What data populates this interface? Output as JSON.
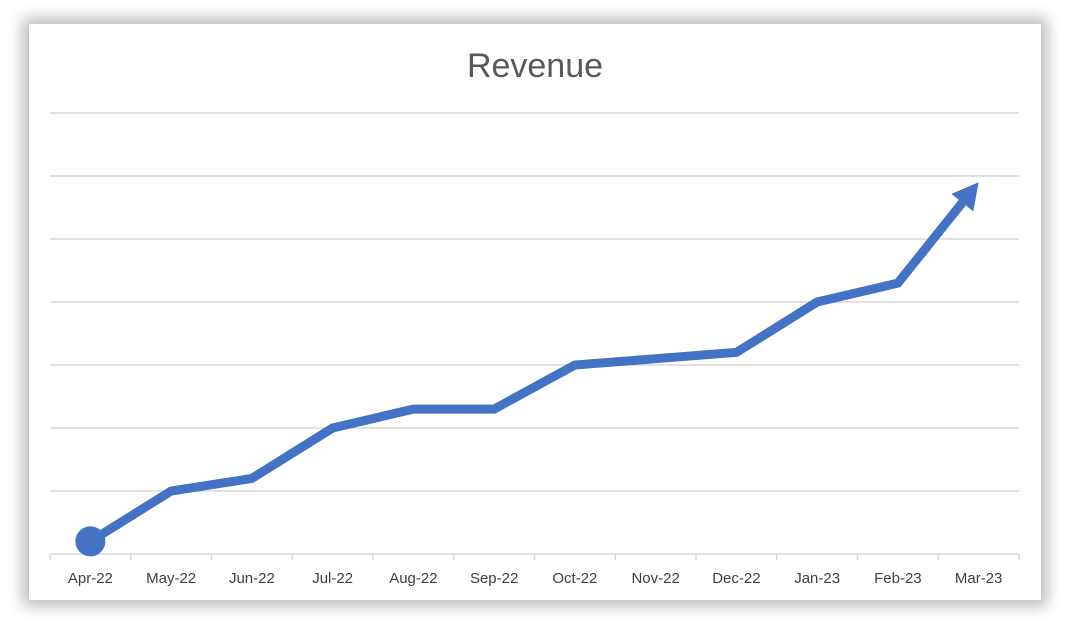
{
  "chart_data": {
    "type": "line",
    "title": "Revenue",
    "xlabel": "",
    "ylabel": "",
    "categories": [
      "Apr-22",
      "May-22",
      "Jun-22",
      "Jul-22",
      "Aug-22",
      "Sep-22",
      "Oct-22",
      "Nov-22",
      "Dec-22",
      "Jan-23",
      "Feb-23",
      "Mar-23"
    ],
    "series": [
      {
        "values": [
          0.2,
          1.0,
          1.2,
          2.0,
          2.3,
          2.3,
          3.0,
          3.1,
          3.2,
          4.0,
          4.3,
          5.9
        ],
        "color": "#4472C4",
        "start_marker": "circle",
        "end_marker": "arrow"
      }
    ],
    "ylim": [
      0,
      7
    ],
    "y_gridlines": 7,
    "y_tick_labels_shown": false,
    "grid": true,
    "legend": "none"
  }
}
